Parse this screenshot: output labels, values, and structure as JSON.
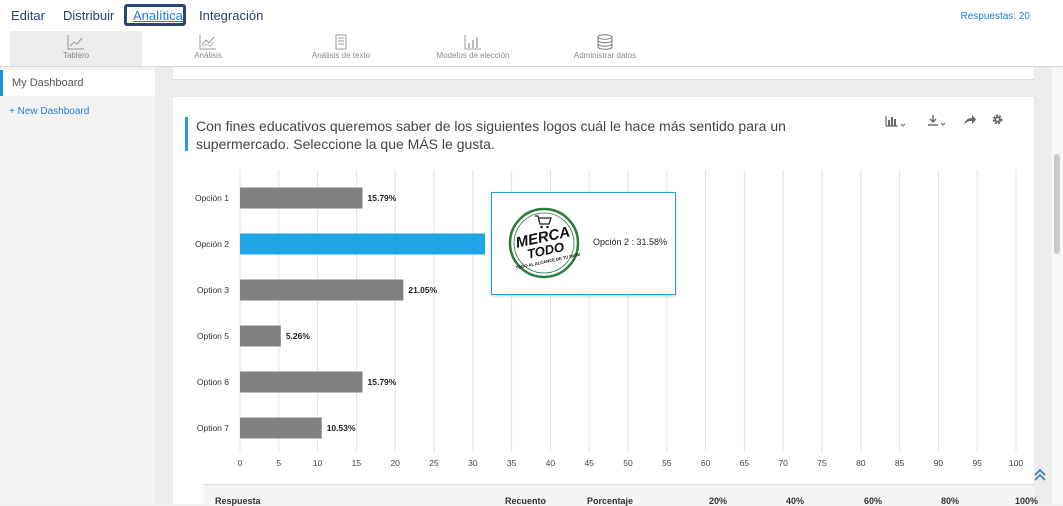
{
  "topnav": {
    "tabs": [
      {
        "label": "Editar"
      },
      {
        "label": "Distribuir"
      },
      {
        "label": "Analítica"
      },
      {
        "label": "Integración"
      }
    ],
    "responses": "Respuestas: 20"
  },
  "toolbar": {
    "items": [
      {
        "label": "Tablero",
        "icon": "line-chart-icon"
      },
      {
        "label": "Análisis",
        "icon": "analysis-chart-icon"
      },
      {
        "label": "Análisis de texto",
        "icon": "text-analysis-icon"
      },
      {
        "label": "Modelos de elección",
        "icon": "choice-model-icon"
      },
      {
        "label": "Administrar datos",
        "icon": "database-icon"
      }
    ]
  },
  "sidebar": {
    "dashboard": "My Dashboard",
    "new_dashboard": "+ New Dashboard"
  },
  "question": {
    "title": "Con fines educativos queremos saber de los siguientes logos cuál le hace más sentido para un supermercado. Seleccione la que MÁS le gusta."
  },
  "colors": {
    "bar_default": "#808080",
    "bar_highlight": "#1fa6e6",
    "accent": "#1f9fe0"
  },
  "chart_data": {
    "type": "bar",
    "orientation": "horizontal",
    "categories": [
      "Opción 1",
      "Opción 2",
      "Option 3",
      "Option 5",
      "Option 6",
      "Option 7"
    ],
    "values": [
      15.79,
      31.58,
      21.05,
      5.26,
      15.79,
      10.53
    ],
    "value_labels": [
      "15.79%",
      "",
      "21.05%",
      "5.26%",
      "15.79%",
      "10.53%"
    ],
    "highlighted_index": 1,
    "xlim": [
      0,
      100
    ],
    "xticks": [
      0,
      5,
      10,
      15,
      20,
      25,
      30,
      35,
      40,
      45,
      50,
      55,
      60,
      65,
      70,
      75,
      80,
      85,
      90,
      95,
      100
    ],
    "grid": true
  },
  "tooltip": {
    "text": "Opción 2 : 31.58%",
    "logo_line1": "MERCA",
    "logo_line2": "TODO",
    "logo_tagline": "TODO AL ALCANCE DE TU MANO"
  },
  "table": {
    "headers": [
      "Respuesta",
      "Recuento",
      "Porcentaje",
      "20%",
      "40%",
      "60%",
      "80%",
      "100%"
    ]
  }
}
